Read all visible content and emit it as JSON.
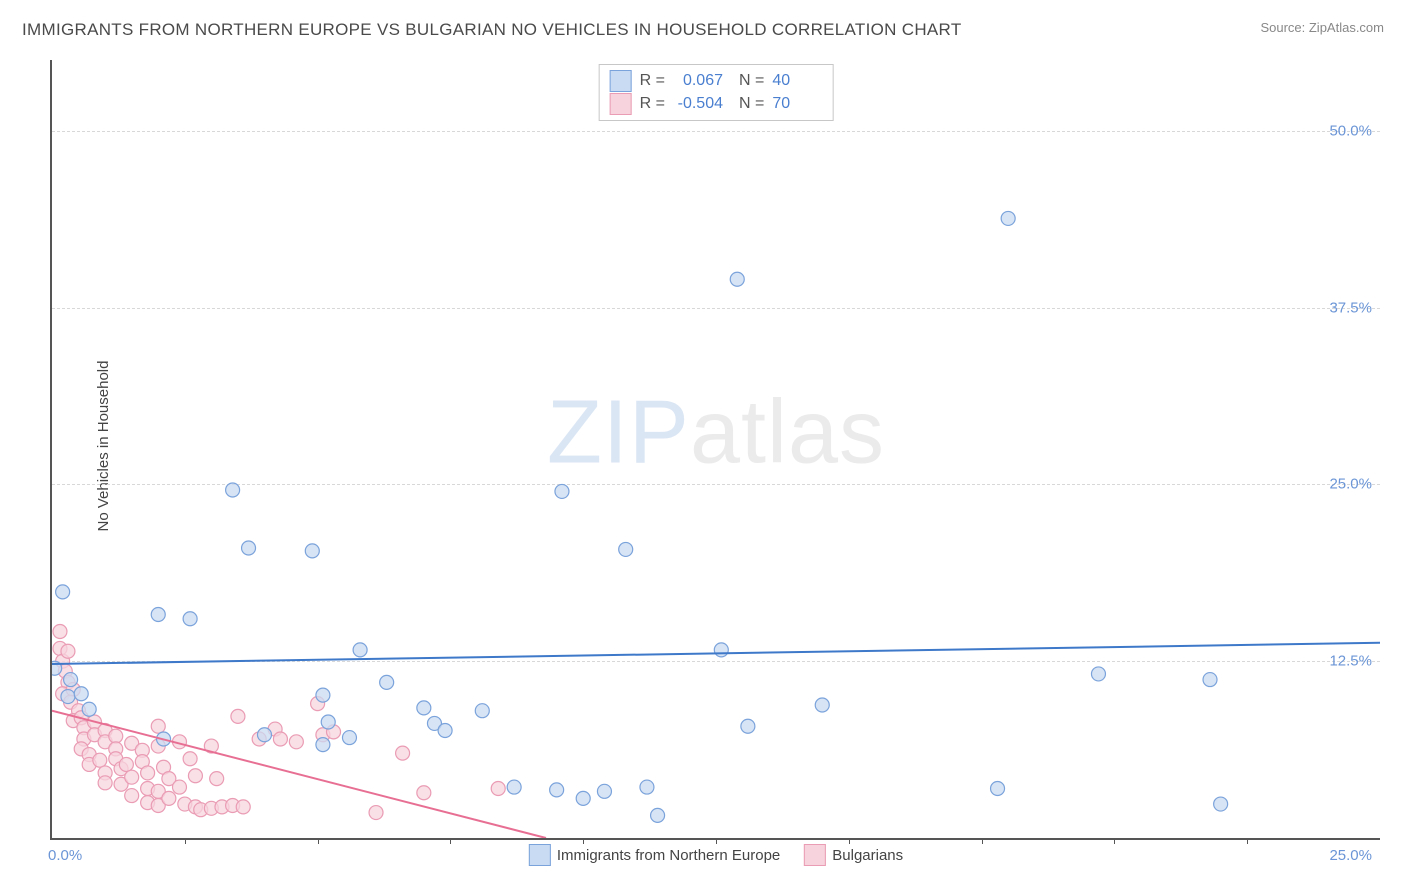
{
  "title": "IMMIGRANTS FROM NORTHERN EUROPE VS BULGARIAN NO VEHICLES IN HOUSEHOLD CORRELATION CHART",
  "source_label": "Source: ",
  "source_value": "ZipAtlas.com",
  "ylabel": "No Vehicles in Household",
  "watermark_a": "ZIP",
  "watermark_b": "atlas",
  "chart": {
    "type": "scatter",
    "xlim": [
      0,
      25
    ],
    "ylim": [
      0,
      55
    ],
    "yticks": [
      12.5,
      25.0,
      37.5,
      50.0
    ],
    "ytick_labels": [
      "12.5%",
      "25.0%",
      "37.5%",
      "50.0%"
    ],
    "xtick_marks": [
      2.5,
      5.0,
      7.5,
      10.0,
      12.5,
      15.0,
      17.5,
      20.0,
      22.5
    ],
    "xtick_labels": {
      "0": "0.0%",
      "25": "25.0%"
    },
    "background_color": "#ffffff",
    "grid_color": "#d8d8d8",
    "axis_color": "#555555",
    "marker_radius": 7,
    "marker_stroke_width": 1.2,
    "line_width": 2,
    "series": [
      {
        "name": "Immigrants from Northern Europe",
        "fill": "#c9dbf2",
        "stroke": "#7ba3db",
        "line_color": "#3e78c9",
        "r_value": "0.067",
        "n_value": "40",
        "trend": {
          "x1": 0,
          "y1": 12.3,
          "x2": 25,
          "y2": 13.8
        },
        "points": [
          [
            0.2,
            17.4
          ],
          [
            0.05,
            12.0
          ],
          [
            0.3,
            10.0
          ],
          [
            0.35,
            11.2
          ],
          [
            0.55,
            10.2
          ],
          [
            2.0,
            15.8
          ],
          [
            2.6,
            15.5
          ],
          [
            3.4,
            24.6
          ],
          [
            3.7,
            20.5
          ],
          [
            4.9,
            20.3
          ],
          [
            5.1,
            10.1
          ],
          [
            5.2,
            8.2
          ],
          [
            5.1,
            6.6
          ],
          [
            5.8,
            13.3
          ],
          [
            6.3,
            11.0
          ],
          [
            5.6,
            7.1
          ],
          [
            7.0,
            9.2
          ],
          [
            7.2,
            8.1
          ],
          [
            7.4,
            7.6
          ],
          [
            8.1,
            9.0
          ],
          [
            8.7,
            3.6
          ],
          [
            9.5,
            3.4
          ],
          [
            9.6,
            24.5
          ],
          [
            10.0,
            2.8
          ],
          [
            10.4,
            3.3
          ],
          [
            10.8,
            20.4
          ],
          [
            11.2,
            3.6
          ],
          [
            11.4,
            1.6
          ],
          [
            12.6,
            13.3
          ],
          [
            12.9,
            39.5
          ],
          [
            14.5,
            9.4
          ],
          [
            18.0,
            43.8
          ],
          [
            17.8,
            3.5
          ],
          [
            19.7,
            11.6
          ],
          [
            22.0,
            2.4
          ],
          [
            21.8,
            11.2
          ],
          [
            13.1,
            7.9
          ],
          [
            4.0,
            7.3
          ],
          [
            2.1,
            7.0
          ],
          [
            0.7,
            9.1
          ]
        ]
      },
      {
        "name": "Bulgarians",
        "fill": "#f7d4dd",
        "stroke": "#ea9cb4",
        "line_color": "#e86f94",
        "r_value": "-0.504",
        "n_value": "70",
        "trend": {
          "x1": 0,
          "y1": 9.0,
          "x2": 9.3,
          "y2": 0
        },
        "points": [
          [
            0.15,
            14.6
          ],
          [
            0.15,
            13.4
          ],
          [
            0.2,
            12.5
          ],
          [
            0.3,
            13.2
          ],
          [
            0.25,
            11.8
          ],
          [
            0.3,
            11.0
          ],
          [
            0.2,
            10.2
          ],
          [
            0.4,
            10.5
          ],
          [
            0.35,
            9.6
          ],
          [
            0.5,
            9.0
          ],
          [
            0.4,
            8.3
          ],
          [
            0.55,
            8.5
          ],
          [
            0.6,
            7.8
          ],
          [
            0.6,
            7.0
          ],
          [
            0.55,
            6.3
          ],
          [
            0.8,
            8.2
          ],
          [
            0.8,
            7.3
          ],
          [
            0.7,
            5.9
          ],
          [
            0.7,
            5.2
          ],
          [
            1.0,
            7.6
          ],
          [
            1.0,
            6.8
          ],
          [
            0.9,
            5.5
          ],
          [
            1.0,
            4.6
          ],
          [
            1.0,
            3.9
          ],
          [
            1.2,
            7.2
          ],
          [
            1.2,
            6.3
          ],
          [
            1.2,
            5.6
          ],
          [
            1.3,
            4.9
          ],
          [
            1.3,
            3.8
          ],
          [
            1.5,
            6.7
          ],
          [
            1.4,
            5.2
          ],
          [
            1.5,
            4.3
          ],
          [
            1.5,
            3.0
          ],
          [
            1.7,
            6.2
          ],
          [
            1.7,
            5.4
          ],
          [
            1.8,
            4.6
          ],
          [
            1.8,
            3.5
          ],
          [
            1.8,
            2.5
          ],
          [
            2.0,
            7.9
          ],
          [
            2.0,
            6.5
          ],
          [
            2.0,
            3.3
          ],
          [
            2.0,
            2.3
          ],
          [
            2.1,
            5.0
          ],
          [
            2.2,
            4.2
          ],
          [
            2.2,
            2.8
          ],
          [
            2.4,
            6.8
          ],
          [
            2.4,
            3.6
          ],
          [
            2.5,
            2.4
          ],
          [
            2.6,
            5.6
          ],
          [
            2.7,
            4.4
          ],
          [
            2.7,
            2.2
          ],
          [
            2.8,
            2.0
          ],
          [
            3.0,
            6.5
          ],
          [
            3.0,
            2.1
          ],
          [
            3.1,
            4.2
          ],
          [
            3.2,
            2.2
          ],
          [
            3.4,
            2.3
          ],
          [
            3.5,
            8.6
          ],
          [
            3.6,
            2.2
          ],
          [
            3.9,
            7.0
          ],
          [
            4.2,
            7.7
          ],
          [
            4.3,
            7.0
          ],
          [
            4.6,
            6.8
          ],
          [
            5.0,
            9.5
          ],
          [
            5.1,
            7.3
          ],
          [
            5.3,
            7.5
          ],
          [
            6.1,
            1.8
          ],
          [
            6.6,
            6.0
          ],
          [
            7.0,
            3.2
          ],
          [
            8.4,
            3.5
          ]
        ]
      }
    ]
  },
  "legend_top_labels": {
    "R": "R =",
    "N": "N ="
  },
  "legend_bottom": [
    "Immigrants from Northern Europe",
    "Bulgarians"
  ]
}
